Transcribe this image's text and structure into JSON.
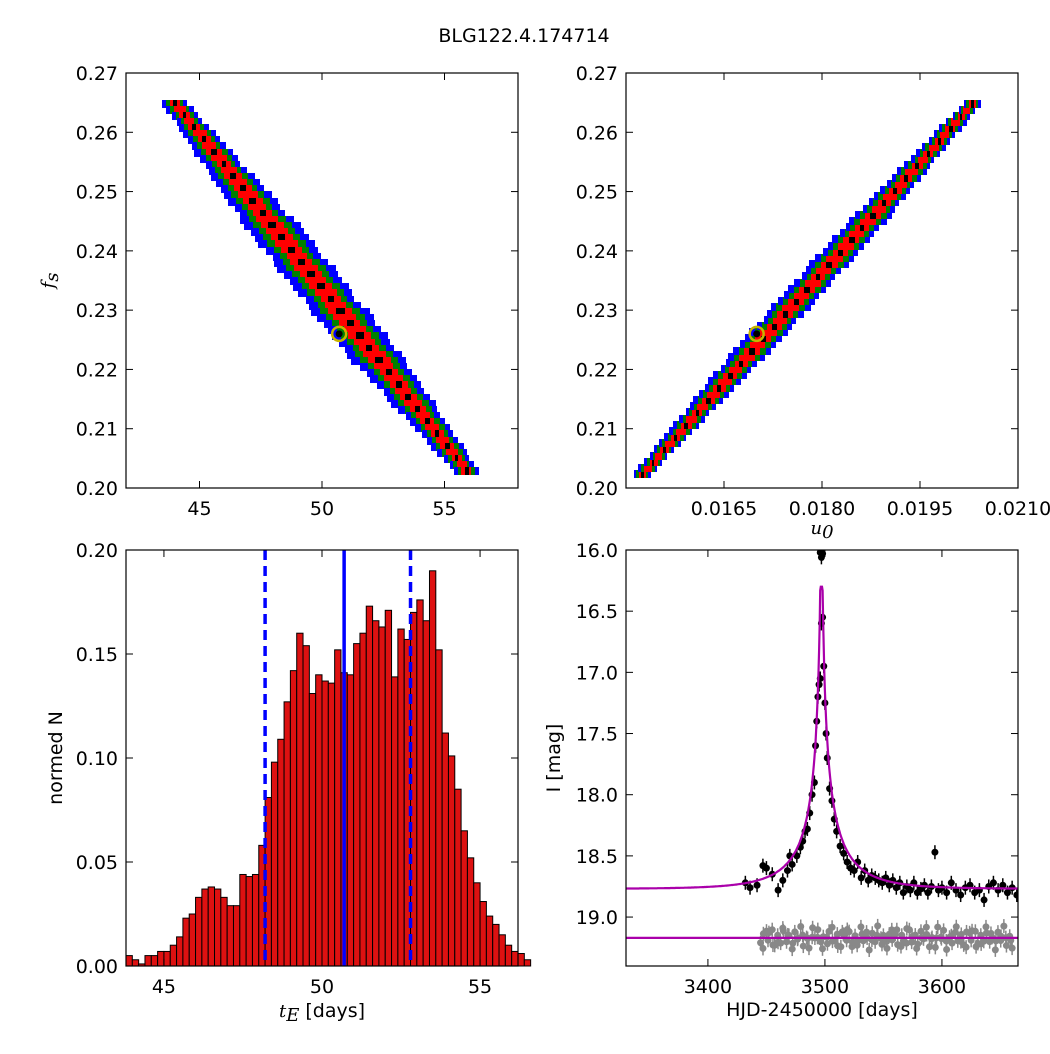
{
  "figure": {
    "title": "BLG122.4.174714",
    "colors": {
      "level1": "#0000ff",
      "level2": "#008000",
      "level3": "#ff0000",
      "level4": "#000000",
      "marker_ring": "#c8b400",
      "hist_bar": "#dd1111",
      "hist_lines": "#0000ff",
      "model": "#aa00aa",
      "residuals": "#888888"
    }
  },
  "chart_data": [
    {
      "id": "fs-vs-tE",
      "type": "heatmap",
      "xlabel": "",
      "ylabel": "f_s",
      "xlim": [
        42,
        58
      ],
      "ylim": [
        0.2,
        0.27
      ],
      "xticks": [
        "45",
        "50",
        "55"
      ],
      "yticks": [
        "0.20",
        "0.21",
        "0.22",
        "0.23",
        "0.24",
        "0.25",
        "0.26",
        "0.27"
      ],
      "ridge_start": [
        44.0,
        0.265
      ],
      "ridge_end": [
        55.9,
        0.203
      ],
      "half_widths_x": [
        1.1,
        0.75,
        0.45,
        0.15
      ],
      "levels": [
        "level1",
        "level2",
        "level3",
        "level4"
      ],
      "best_fit": [
        50.7,
        0.226
      ]
    },
    {
      "id": "fs-vs-u0",
      "type": "heatmap",
      "xlabel": "u_0",
      "ylabel": "",
      "xlim": [
        0.015,
        0.021
      ],
      "ylim": [
        0.2,
        0.27
      ],
      "xticks": [
        "0.0165",
        "0.0180",
        "0.0195",
        "0.0210"
      ],
      "yticks": [
        "0.20",
        "0.21",
        "0.22",
        "0.23",
        "0.24",
        "0.25",
        "0.26",
        "0.27"
      ],
      "ridge_start": [
        0.01525,
        0.2025
      ],
      "ridge_end": [
        0.0203,
        0.265
      ],
      "half_widths_x": [
        0.00028,
        0.0002,
        0.00012,
        4e-05
      ],
      "levels": [
        "level1",
        "level2",
        "level3",
        "level4"
      ],
      "best_fit": [
        0.017,
        0.226
      ]
    },
    {
      "id": "tE-histogram",
      "type": "bar",
      "xlabel": "t_E [days]",
      "ylabel": "normed N",
      "xlim": [
        43.8,
        56.2
      ],
      "ylim": [
        0,
        0.2
      ],
      "xticks": [
        "45",
        "50",
        "55"
      ],
      "yticks": [
        "0.00",
        "0.05",
        "0.10",
        "0.15",
        "0.20"
      ],
      "bin_start": 43.8,
      "bin_width": 0.2,
      "values": [
        0.005,
        0.003,
        0.001,
        0.005,
        0.005,
        0.007,
        0.007,
        0.01,
        0.014,
        0.023,
        0.025,
        0.033,
        0.037,
        0.038,
        0.037,
        0.033,
        0.029,
        0.029,
        0.044,
        0.043,
        0.044,
        0.058,
        0.081,
        0.098,
        0.109,
        0.127,
        0.142,
        0.16,
        0.154,
        0.131,
        0.14,
        0.137,
        0.136,
        0.152,
        0.141,
        0.14,
        0.155,
        0.16,
        0.173,
        0.166,
        0.163,
        0.171,
        0.139,
        0.162,
        0.157,
        0.17,
        0.176,
        0.166,
        0.19,
        0.152,
        0.112,
        0.101,
        0.085,
        0.065,
        0.052,
        0.04,
        0.031,
        0.024,
        0.02,
        0.015,
        0.01,
        0.007,
        0.006,
        0.003
      ],
      "median": 50.7,
      "lower": 48.2,
      "upper": 52.8
    },
    {
      "id": "light-curve",
      "type": "scatter",
      "xlabel": "HJD-2450000 [days]",
      "ylabel": "I [mag]",
      "xlim": [
        3330,
        3665
      ],
      "ylim": [
        19.4,
        16.0
      ],
      "xticks": [
        "3400",
        "3500",
        "3600"
      ],
      "yticks": [
        "16.0",
        "16.5",
        "17.0",
        "17.5",
        "18.0",
        "18.5",
        "19.0"
      ],
      "model": {
        "t0": 3497,
        "tE": 50.7,
        "u0": 0.017,
        "fs": 0.226,
        "baseline": 18.77
      },
      "residual_offset": 19.17,
      "points": [
        [
          3432,
          18.72
        ],
        [
          3436,
          18.76
        ],
        [
          3442,
          18.74
        ],
        [
          3447,
          18.58
        ],
        [
          3450,
          18.6
        ],
        [
          3455,
          18.65
        ],
        [
          3460,
          18.78
        ],
        [
          3464,
          18.7
        ],
        [
          3468,
          18.62
        ],
        [
          3470,
          18.5
        ],
        [
          3472,
          18.57
        ],
        [
          3476,
          18.5
        ],
        [
          3479,
          18.43
        ],
        [
          3481,
          18.38
        ],
        [
          3483,
          18.3
        ],
        [
          3485,
          18.28
        ],
        [
          3487,
          18.15
        ],
        [
          3489,
          18.0
        ],
        [
          3491,
          17.9
        ],
        [
          3492,
          17.6
        ],
        [
          3493,
          17.4
        ],
        [
          3494,
          17.2
        ],
        [
          3495,
          17.1
        ],
        [
          3496,
          17.05
        ],
        [
          3497,
          16.6
        ],
        [
          3498,
          16.55
        ],
        [
          3499,
          16.95
        ],
        [
          3500,
          17.25
        ],
        [
          3501,
          17.5
        ],
        [
          3502,
          17.7
        ],
        [
          3504,
          17.95
        ],
        [
          3506,
          18.05
        ],
        [
          3508,
          18.2
        ],
        [
          3510,
          18.3
        ],
        [
          3513,
          18.42
        ],
        [
          3516,
          18.48
        ],
        [
          3519,
          18.55
        ],
        [
          3522,
          18.6
        ],
        [
          3525,
          18.62
        ],
        [
          3528,
          18.55
        ],
        [
          3531,
          18.68
        ],
        [
          3534,
          18.62
        ],
        [
          3537,
          18.7
        ],
        [
          3540,
          18.66
        ],
        [
          3543,
          18.68
        ],
        [
          3546,
          18.7
        ],
        [
          3549,
          18.72
        ],
        [
          3552,
          18.68
        ],
        [
          3555,
          18.74
        ],
        [
          3558,
          18.7
        ],
        [
          3561,
          18.76
        ],
        [
          3564,
          18.72
        ],
        [
          3567,
          18.8
        ],
        [
          3570,
          18.75
        ],
        [
          3573,
          18.78
        ],
        [
          3576,
          18.72
        ],
        [
          3579,
          18.8
        ],
        [
          3582,
          18.77
        ],
        [
          3585,
          18.74
        ],
        [
          3588,
          18.8
        ],
        [
          3591,
          18.75
        ],
        [
          3594,
          18.47
        ],
        [
          3597,
          18.78
        ],
        [
          3600,
          18.76
        ],
        [
          3604,
          18.8
        ],
        [
          3608,
          18.72
        ],
        [
          3612,
          18.78
        ],
        [
          3616,
          18.82
        ],
        [
          3620,
          18.76
        ],
        [
          3624,
          18.74
        ],
        [
          3628,
          18.8
        ],
        [
          3632,
          18.78
        ],
        [
          3636,
          18.86
        ],
        [
          3640,
          18.75
        ],
        [
          3644,
          18.72
        ],
        [
          3648,
          18.78
        ],
        [
          3652,
          18.74
        ],
        [
          3656,
          18.8
        ],
        [
          3660,
          18.76
        ],
        [
          3664,
          18.82
        ],
        [
          3496,
          16.02
        ],
        [
          3497,
          16.06
        ],
        [
          3498,
          16.03
        ]
      ]
    }
  ]
}
